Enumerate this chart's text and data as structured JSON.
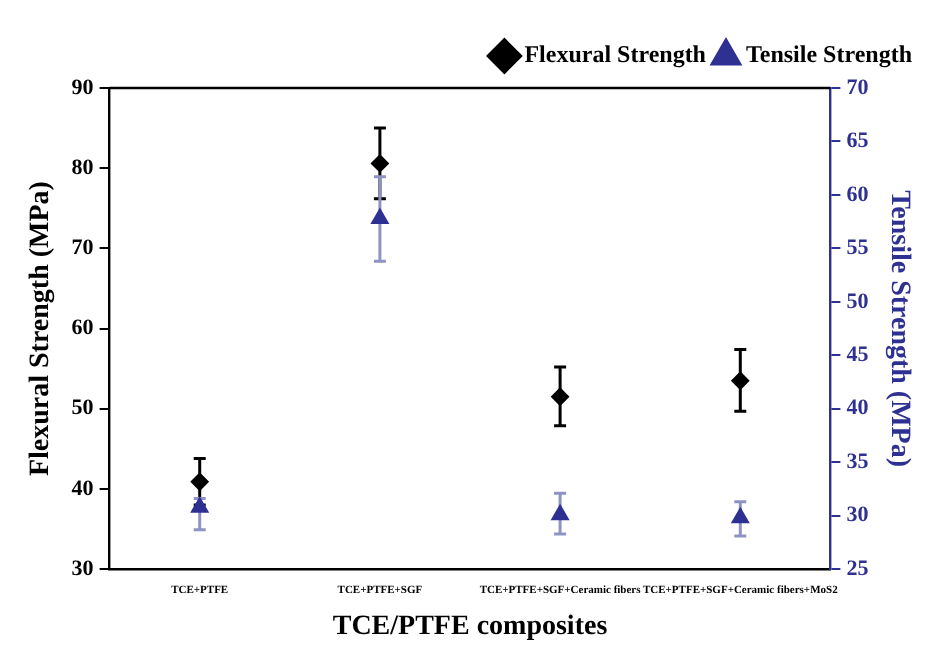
{
  "chart_data": {
    "type": "scatter",
    "xlabel": "TCE/PTFE composites",
    "ylabel": "Flexural Strength (MPa)",
    "y2label": "Tensile Strength (MPa)",
    "categories": [
      "TCE+PTFE",
      "TCE+PTFE+SGF",
      "TCE+PTFE+SGF+Ceramic fibers",
      "TCE+PTFE+SGF+Ceramic fibers+MoS2"
    ],
    "series": [
      {
        "name": "Flexural Strength",
        "color": "#000000",
        "marker": "diamond",
        "values": [
          40.9,
          80.6,
          51.5,
          53.5
        ],
        "errors": [
          [
            38,
            43.8
          ],
          [
            76.2,
            85
          ],
          [
            47.9,
            55.2
          ],
          [
            49.7,
            57.4
          ]
        ]
      },
      {
        "name": "Tensile Strength",
        "color": "#2e3192",
        "marker": "triangle",
        "axis": "y2",
        "values": [
          30.8,
          57.8,
          30.1,
          29.8
        ],
        "errors": [
          [
            28.7,
            31.6
          ],
          [
            53.8,
            61.7
          ],
          [
            28.3,
            32.1
          ],
          [
            28.1,
            31.3
          ]
        ]
      }
    ],
    "ylim": [
      30,
      90
    ],
    "yticks": [
      30,
      40,
      50,
      60,
      70,
      80,
      90
    ],
    "y2lim": [
      25,
      70
    ],
    "y2ticks": [
      25,
      30,
      35,
      40,
      45,
      50,
      55,
      60,
      65,
      70
    ],
    "legend": "top right",
    "grid": false
  }
}
